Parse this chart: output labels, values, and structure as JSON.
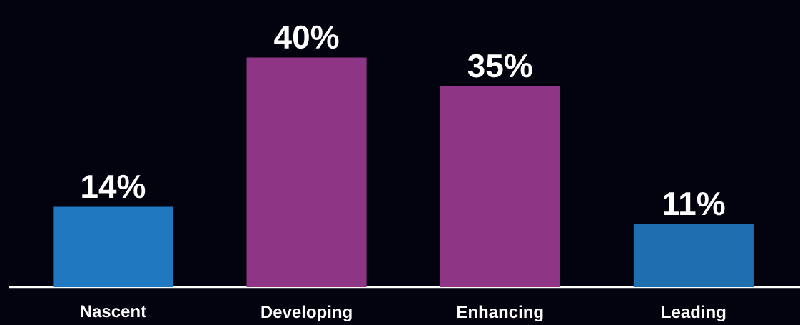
{
  "chart_data": {
    "type": "bar",
    "categories": [
      "Nascent",
      "Developing",
      "Enhancing",
      "Leading"
    ],
    "values": [
      14,
      40,
      35,
      11
    ],
    "value_labels": [
      "14%",
      "40%",
      "35%",
      "11%"
    ],
    "colors": [
      "#2078c0",
      "#8e3585",
      "#8e3585",
      "#1f6fb0"
    ]
  }
}
